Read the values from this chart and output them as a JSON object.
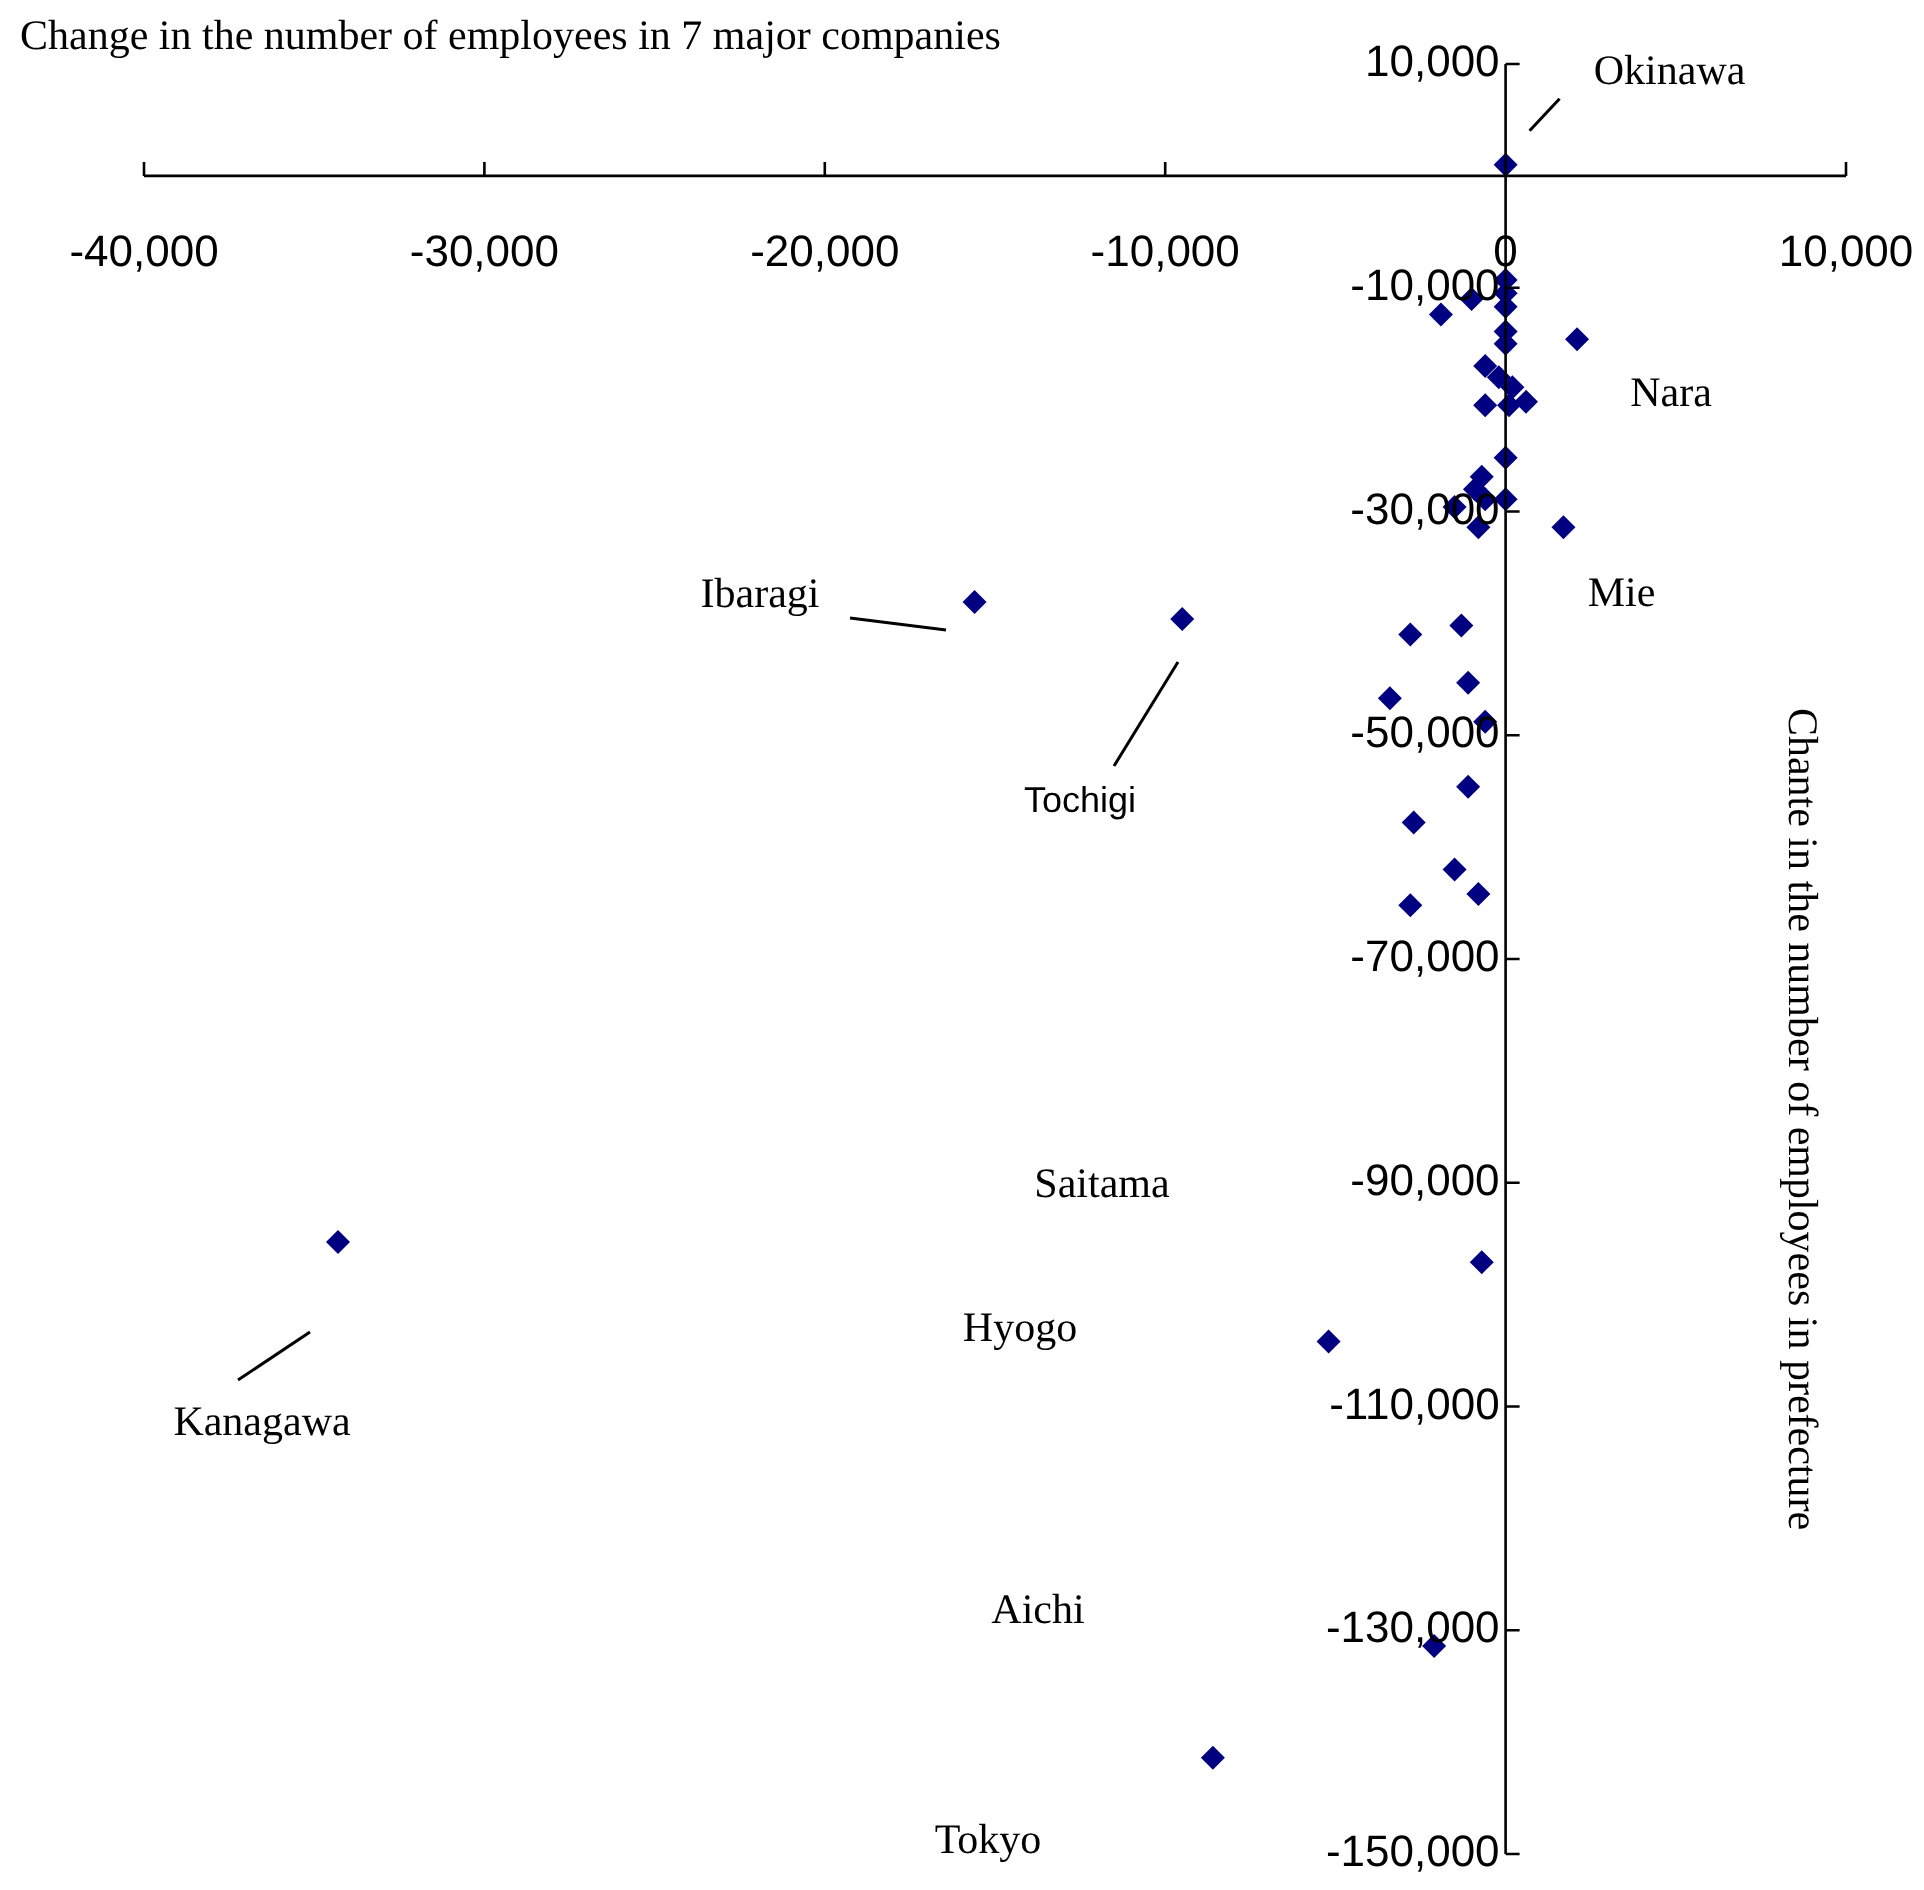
{
  "chart_data": {
    "type": "scatter",
    "xlabel": "Change in the number of employees in 7 major companies",
    "ylabel": "Chante in the number of employees in prefecture",
    "xlim": [
      -40000,
      10000
    ],
    "xticks": [
      {
        "value": -40000,
        "label": "-40,000"
      },
      {
        "value": -30000,
        "label": "-30,000"
      },
      {
        "value": -20000,
        "label": "-20,000"
      },
      {
        "value": -10000,
        "label": "-10,000"
      },
      0,
      {
        "value": 10000,
        "label": "10,000"
      }
    ],
    "ylim": [
      -150000,
      10000
    ],
    "yticks": [
      {
        "value": 10000,
        "label": "10,000"
      },
      {
        "value": -10000,
        "label": "-10,000"
      },
      {
        "value": -30000,
        "label": "-30,000"
      },
      {
        "value": -50000,
        "label": "-50,000"
      },
      {
        "value": -70000,
        "label": "-70,000"
      },
      {
        "value": -90000,
        "label": "-90,000"
      },
      {
        "value": -110000,
        "label": "-110,000"
      },
      {
        "value": -130000,
        "label": "-130,000"
      },
      {
        "value": -150000,
        "label": "-150,000"
      }
    ],
    "grid": false,
    "legend": false,
    "marker": "diamond",
    "series": [
      {
        "color": "#000080",
        "x": [
          0,
          0,
          -1000,
          -1900,
          0,
          0,
          0,
          0,
          2100,
          -600,
          -200,
          200,
          -600,
          100,
          600,
          0,
          -700,
          -900,
          -600,
          0,
          -1500,
          -800,
          1700,
          -2800,
          -1300,
          -1100,
          -3400,
          -600,
          -1100,
          -2700,
          -1500,
          -800,
          -2800,
          -15600,
          -9500,
          -34300,
          -700,
          -5200,
          -2100,
          -8600
        ],
        "values": [
          1000,
          -9300,
          -11000,
          -12400,
          -10500,
          -11700,
          -13900,
          -15000,
          -14600,
          -17000,
          -18000,
          -18900,
          -20500,
          -20500,
          -20200,
          -25200,
          -26900,
          -28000,
          -28900,
          -28900,
          -29600,
          -31400,
          -31400,
          -41000,
          -40200,
          -45300,
          -46700,
          -48800,
          -54600,
          -57800,
          -62000,
          -64200,
          -65200,
          -38100,
          -39600,
          -95300,
          -97100,
          -104200,
          -131400,
          -141400
        ]
      }
    ],
    "annotations": [
      {
        "text": "Okinawa",
        "x": 0,
        "y": 1000
      },
      {
        "text": "Nara",
        "x": 2100,
        "y": -14600
      },
      {
        "text": "Mie",
        "x": 1700,
        "y": -31400
      },
      "Ibaragi",
      "Tochigi",
      "Kanagawa",
      "Saitama",
      "Hyogo",
      "Aichi",
      "Tokyo"
    ]
  }
}
